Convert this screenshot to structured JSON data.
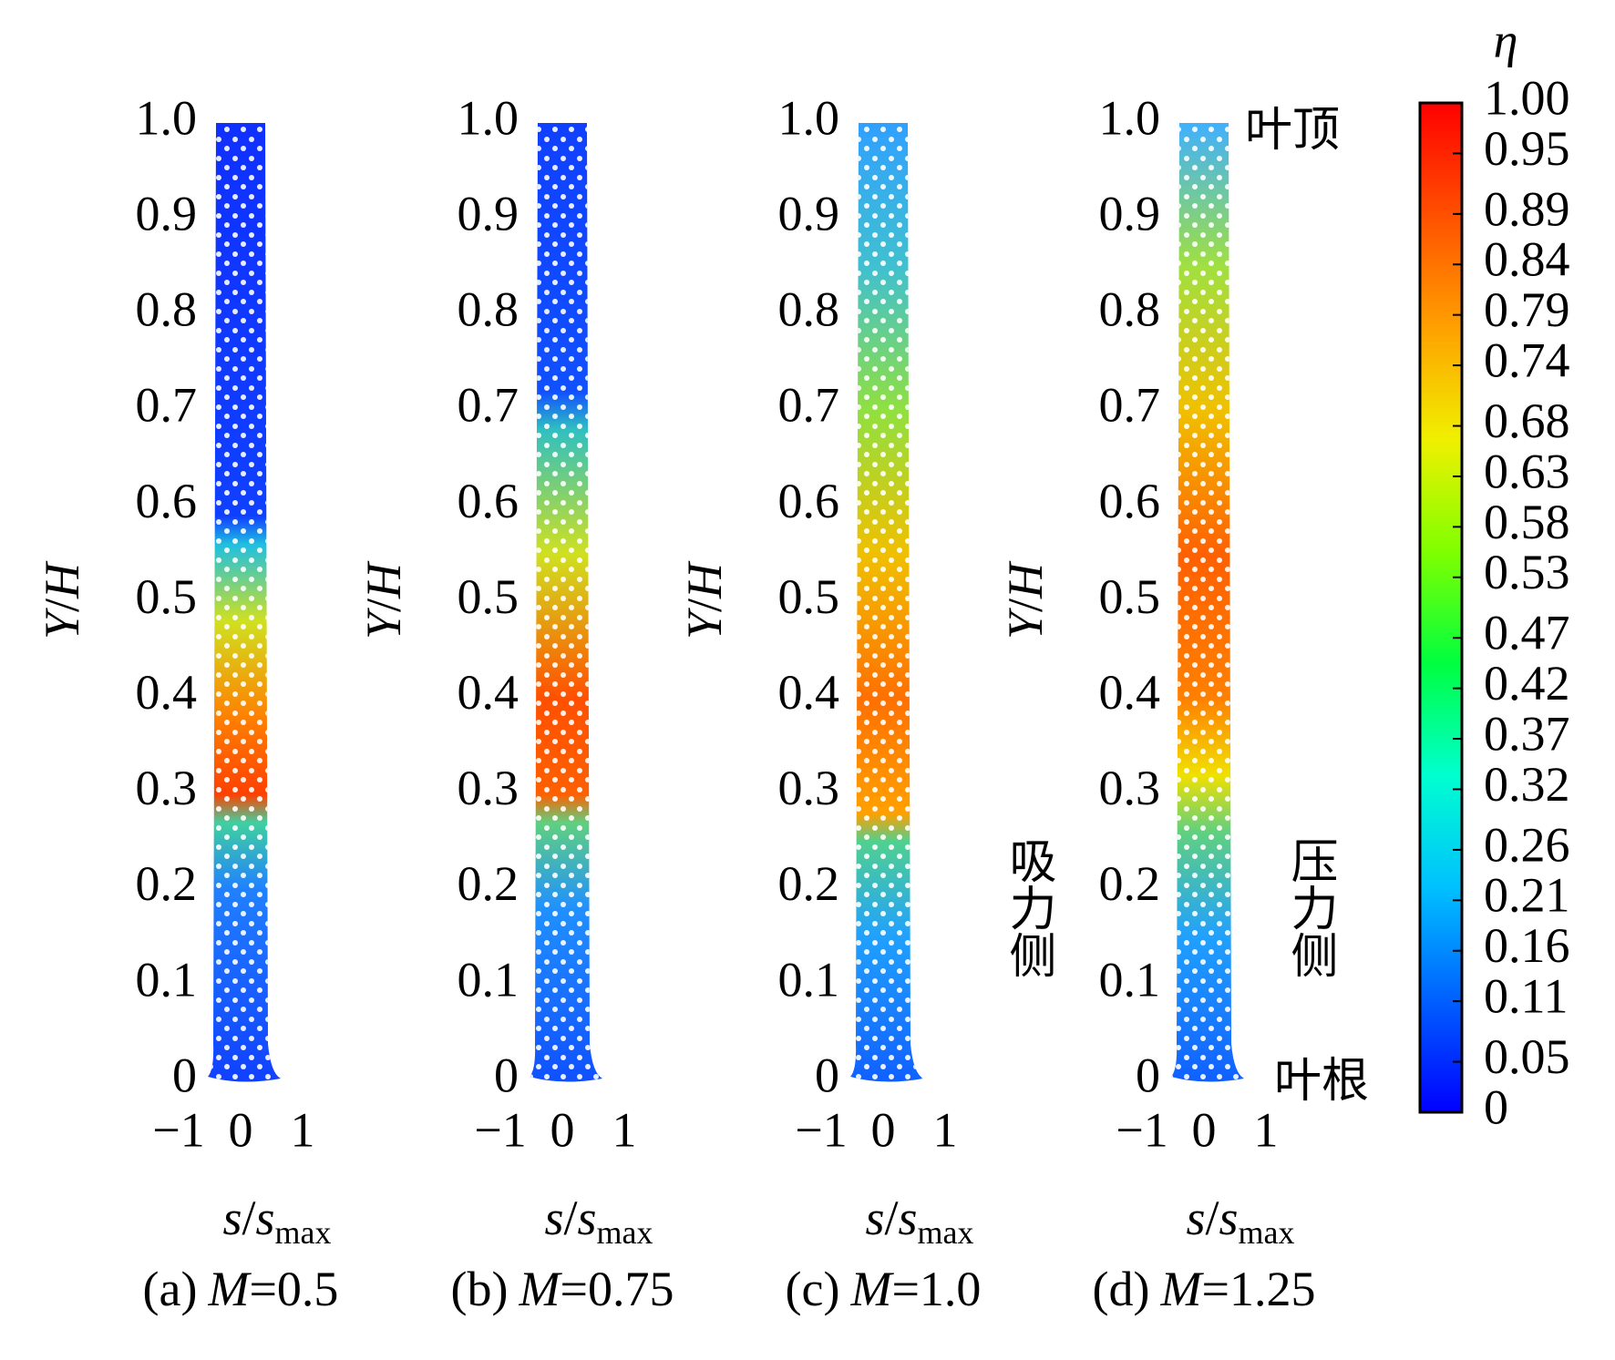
{
  "chart_data": {
    "type": "heatmap",
    "y_label": [
      "Y",
      "/",
      "H"
    ],
    "x_label": [
      "s",
      "/",
      "s",
      "max"
    ],
    "ylim": [
      0,
      1
    ],
    "yticks": [
      0,
      0.1,
      0.2,
      0.3,
      0.4,
      0.5,
      0.6,
      0.7,
      0.8,
      0.9,
      {
        "value": 1,
        "label": "1.0"
      }
    ],
    "xlim": [
      -1,
      1
    ],
    "xticks": [
      {
        "value": -1,
        "label": "−1"
      },
      0,
      1
    ],
    "panels": [
      {
        "caption": [
          "(a)",
          "M",
          "=0.5"
        ]
      },
      {
        "caption": [
          "(b)",
          "M",
          "=0.75"
        ]
      },
      {
        "caption": [
          "(c)",
          "M",
          "=1.0"
        ]
      },
      {
        "caption": [
          "(d)",
          "M",
          "=1.25"
        ]
      }
    ],
    "annotations": [
      "叶顶",
      "叶根",
      "吸力侧",
      "压力侧"
    ],
    "colorbar": {
      "title": "η",
      "lim": [
        0,
        1
      ],
      "colors": [
        "#0000ff",
        "#0060ff",
        "#00c0ff",
        "#00ffd0",
        "#00ff40",
        "#80ff00",
        "#f0f000",
        "#ffa000",
        "#ff5000",
        "#ff0000"
      ],
      "ticks": [
        0,
        0.05,
        0.11,
        0.16,
        0.21,
        0.26,
        0.32,
        0.37,
        0.42,
        0.47,
        0.53,
        0.58,
        0.63,
        0.68,
        0.74,
        0.79,
        0.84,
        0.89,
        0.95,
        {
          "value": 1,
          "label": "1.00"
        }
      ]
    }
  }
}
